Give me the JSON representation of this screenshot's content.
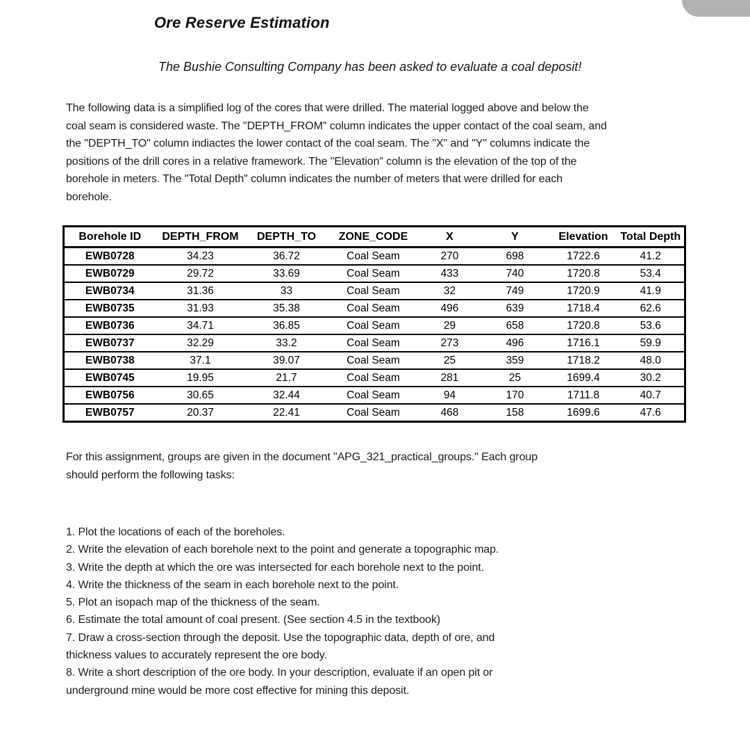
{
  "page": {
    "title": "Ore Reserve Estimation",
    "subtitle": "The Bushie Consulting Company has been asked to evaluate a coal deposit!",
    "intro": "The following data is a simplified log of the cores that were drilled. The material logged above and below the\ncoal seam is considered waste. The \"DEPTH_FROM\" column indicates the upper contact of the coal seam, and\nthe \"DEPTH_TO\" column indiactes the lower contact of the coal seam. The \"X\" and \"Y\" columns indicate the\npositions of the drill cores in a relative framework. The \"Elevation\" column is the elevation of the top of the\nborehole in meters. The \"Total Depth\" column indicates the number of meters that were drilled for each\nborehole.",
    "assignment_note": "For this assignment, groups are given in the document \"APG_321_practical_groups.\" Each group\nshould perform the following tasks:",
    "tasks": [
      "1. Plot the locations of each of the boreholes.",
      "2. Write the elevation of each borehole next to the point and generate a topographic map.",
      "3. Write the depth at which the ore was intersected for each borehole next to the point.",
      "4. Write the thickness of the seam in each borehole next to the point.",
      "5. Plot an isopach map of the thickness of the seam.",
      "6. Estimate the total amount of coal present. (See section 4.5 in the textbook)",
      "7. Draw a cross-section through the deposit.  Use the topographic data, depth of ore, and\nthickness values to accurately represent the ore body.",
      "8. Write a short description of the ore body. In your description, evaluate if an open pit or\nunderground mine would be more cost effective for mining this deposit."
    ]
  },
  "table": {
    "headers": [
      "Borehole ID",
      "DEPTH_FROM",
      "DEPTH_TO",
      "ZONE_CODE",
      "X",
      "Y",
      "Elevation",
      "Total Depth"
    ],
    "rows": [
      [
        "EWB0728",
        "34.23",
        "36.72",
        "Coal Seam",
        "270",
        "698",
        "1722.6",
        "41.2"
      ],
      [
        "EWB0729",
        "29.72",
        "33.69",
        "Coal Seam",
        "433",
        "740",
        "1720.8",
        "53.4"
      ],
      [
        "EWB0734",
        "31.36",
        "33",
        "Coal Seam",
        "32",
        "749",
        "1720.9",
        "41.9"
      ],
      [
        "EWB0735",
        "31.93",
        "35.38",
        "Coal Seam",
        "496",
        "639",
        "1718.4",
        "62.6"
      ],
      [
        "EWB0736",
        "34.71",
        "36.85",
        "Coal Seam",
        "29",
        "658",
        "1720.8",
        "53.6"
      ],
      [
        "EWB0737",
        "32.29",
        "33.2",
        "Coal Seam",
        "273",
        "496",
        "1716.1",
        "59.9"
      ],
      [
        "EWB0738",
        "37.1",
        "39.07",
        "Coal Seam",
        "25",
        "359",
        "1718.2",
        "48.0"
      ],
      [
        "EWB0745",
        "19.95",
        "21.7",
        "Coal Seam",
        "281",
        "25",
        "1699.4",
        "30.2"
      ],
      [
        "EWB0756",
        "30.65",
        "32.44",
        "Coal Seam",
        "94",
        "170",
        "1711.8",
        "40.7"
      ],
      [
        "EWB0757",
        "20.37",
        "22.41",
        "Coal Seam",
        "468",
        "158",
        "1699.6",
        "47.6"
      ]
    ]
  },
  "colors": {
    "text": "#1b1b1b",
    "background": "#ffffff",
    "table_border": "#000000",
    "corner_artifact": "#b2b2b2"
  }
}
